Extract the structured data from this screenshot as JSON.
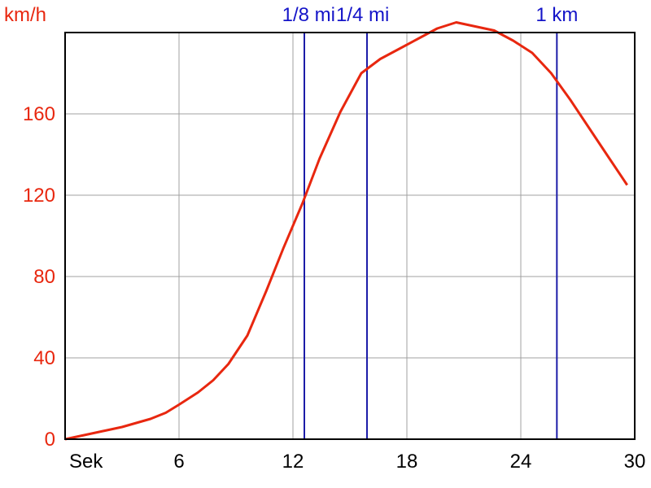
{
  "chart_data": {
    "type": "line",
    "ylabel": "km/h",
    "xlabel": "Sek",
    "xlim": [
      0,
      30
    ],
    "ylim": [
      0,
      200
    ],
    "x_ticks": [
      {
        "value": 0,
        "label": "Sek"
      },
      {
        "value": 6,
        "label": "6"
      },
      {
        "value": 12,
        "label": "12"
      },
      {
        "value": 18,
        "label": "18"
      },
      {
        "value": 24,
        "label": "24"
      },
      {
        "value": 30,
        "label": "30"
      }
    ],
    "y_ticks": [
      {
        "value": 0,
        "label": "0"
      },
      {
        "value": 40,
        "label": "40"
      },
      {
        "value": 80,
        "label": "80"
      },
      {
        "value": 120,
        "label": "120"
      },
      {
        "value": 160,
        "label": "160"
      }
    ],
    "grid": true,
    "markers": [
      {
        "x": 12.6,
        "label": "1/8 mi"
      },
      {
        "x": 15.9,
        "label": "1/4 mi"
      },
      {
        "x": 25.9,
        "label": "1 km"
      }
    ],
    "series": [
      {
        "color": "#e8270f",
        "x": [
          0,
          1.5,
          3,
          4.5,
          5.3,
          6,
          7,
          7.8,
          8.6,
          9.6,
          10.6,
          11.5,
          12.5,
          13.4,
          14.5,
          15.6,
          16.6,
          17.6,
          18.6,
          19.6,
          20.6,
          21.6,
          22.6,
          23.6,
          24.6,
          25.6,
          26.6,
          27.6,
          28.6,
          29.6
        ],
        "y": [
          0,
          3,
          6,
          10,
          13,
          17,
          23,
          29,
          37,
          51,
          73,
          94,
          116,
          138,
          161,
          180,
          187,
          192,
          197,
          202,
          205,
          203,
          201,
          196,
          190,
          180,
          167,
          153,
          139,
          125
        ]
      }
    ],
    "colors": {
      "line": "#e8270f",
      "markers": "#1c1ca8",
      "y_axis_text": "#e8270f",
      "marker_text": "#1414c8",
      "x_axis_text": "#000000",
      "grid": "#a0a0a0",
      "frame": "#000000"
    }
  }
}
